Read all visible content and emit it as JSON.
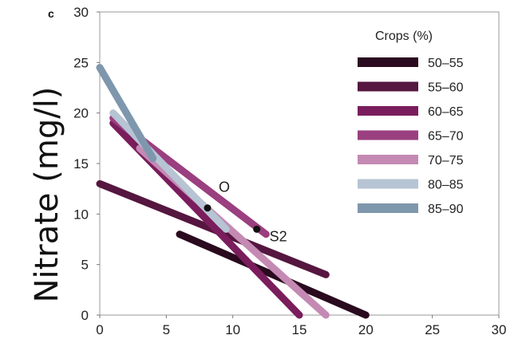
{
  "panel_label": "c",
  "chart_data": {
    "type": "line",
    "ylabel": "Nitrate (mg/l)",
    "xlabel": "",
    "xlim": [
      0,
      30
    ],
    "ylim": [
      0,
      30
    ],
    "xticks": [
      0,
      5,
      10,
      15,
      20,
      25,
      30
    ],
    "yticks": [
      0,
      5,
      10,
      15,
      20,
      25,
      30
    ],
    "grid": false,
    "legend": {
      "title": "Crops (%)",
      "placement": "top-right"
    },
    "series": [
      {
        "name": "50–55",
        "color": "#2a0a1e",
        "x": [
          6,
          20
        ],
        "y": [
          8,
          0
        ]
      },
      {
        "name": "55–60",
        "color": "#55163f",
        "x": [
          0,
          17
        ],
        "y": [
          13,
          4
        ]
      },
      {
        "name": "60–65",
        "color": "#7a1d5c",
        "x": [
          1,
          15
        ],
        "y": [
          19,
          0
        ]
      },
      {
        "name": "65–70",
        "color": "#9a3f7f",
        "x": [
          1,
          12.5
        ],
        "y": [
          19.5,
          8
        ]
      },
      {
        "name": "70–75",
        "color": "#c48ab3",
        "x": [
          3,
          17
        ],
        "y": [
          16.5,
          0
        ]
      },
      {
        "name": "80–85",
        "color": "#b6c4d3",
        "x": [
          1,
          9.5
        ],
        "y": [
          20,
          8.5
        ]
      },
      {
        "name": "85–90",
        "color": "#7f97ad",
        "x": [
          0,
          4
        ],
        "y": [
          24.5,
          15.5
        ]
      }
    ],
    "points": [
      {
        "label": "O",
        "x": 8.1,
        "y": 10.6
      },
      {
        "label": "S2",
        "x": 11.8,
        "y": 8.5
      }
    ]
  }
}
